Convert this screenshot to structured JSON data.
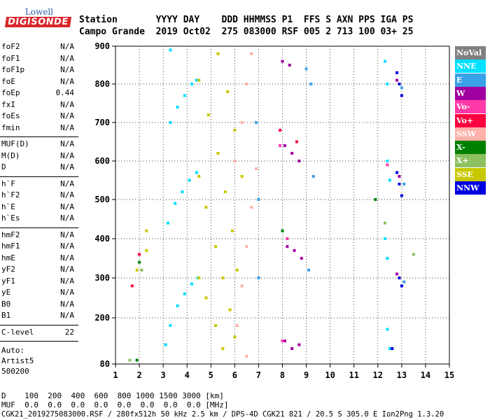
{
  "logo": {
    "line1": "Lowell",
    "line2": "DIGISONDE"
  },
  "header": {
    "row1": "Station       YYYY DAY    DDD HHMMSS P1  FFS S AXN PPS IGA PS",
    "row2": "Campo Grande  2019 Oct02  275 083000 RSF 005 2 713 100 03+ 25"
  },
  "params": [
    {
      "name": "foF2",
      "value": "N/A",
      "group": 0
    },
    {
      "name": "foF1",
      "value": "N/A",
      "group": 0
    },
    {
      "name": "foF1p",
      "value": "N/A",
      "group": 0
    },
    {
      "name": "foE",
      "value": "N/A",
      "group": 0
    },
    {
      "name": "foEp",
      "value": "0.44",
      "group": 0
    },
    {
      "name": "fxI",
      "value": "N/A",
      "group": 0
    },
    {
      "name": "foEs",
      "value": "N/A",
      "group": 0
    },
    {
      "name": "fmin",
      "value": "N/A",
      "group": 0
    },
    {
      "name": "MUF(D)",
      "value": "N/A",
      "group": 1
    },
    {
      "name": "M(D)",
      "value": "N/A",
      "group": 1
    },
    {
      "name": "D",
      "value": "N/A",
      "group": 1
    },
    {
      "name": "h`F",
      "value": "N/A",
      "group": 2
    },
    {
      "name": "h`F2",
      "value": "N/A",
      "group": 2
    },
    {
      "name": "h`E",
      "value": "N/A",
      "group": 2
    },
    {
      "name": "h`Es",
      "value": "N/A",
      "group": 2
    },
    {
      "name": "hmF2",
      "value": "N/A",
      "group": 3
    },
    {
      "name": "hmF1",
      "value": "N/A",
      "group": 3
    },
    {
      "name": "hmE",
      "value": "N/A",
      "group": 3
    },
    {
      "name": "yF2",
      "value": "N/A",
      "group": 3
    },
    {
      "name": "yF1",
      "value": "N/A",
      "group": 3
    },
    {
      "name": "yE",
      "value": "N/A",
      "group": 3
    },
    {
      "name": "B0",
      "value": "N/A",
      "group": 3
    },
    {
      "name": "B1",
      "value": "N/A",
      "group": 3
    },
    {
      "name": "C-level",
      "value": "22",
      "group": 4
    }
  ],
  "auto": [
    "Auto:",
    "Artist5",
    "500200"
  ],
  "legend": [
    {
      "label": "NoVal",
      "color": "#808080"
    },
    {
      "label": "NNE",
      "color": "#00e0ff"
    },
    {
      "label": "E",
      "color": "#3aa0e8"
    },
    {
      "label": "W",
      "color": "#a000a0"
    },
    {
      "label": "Vo-",
      "color": "#ff3aa8"
    },
    {
      "label": "Vo+",
      "color": "#ff0040"
    },
    {
      "label": "SSW",
      "color": "#ffb0a8"
    },
    {
      "label": "X-",
      "color": "#008000"
    },
    {
      "label": "X+",
      "color": "#8cc060"
    },
    {
      "label": "SSE",
      "color": "#c8c800"
    },
    {
      "label": "NNW",
      "color": "#0000e0"
    }
  ],
  "chart_data": {
    "type": "scatter",
    "xlim": [
      1,
      15
    ],
    "ylim": [
      80,
      900
    ],
    "x_ticks": [
      "1",
      "2",
      "3",
      "4",
      "5",
      "6",
      "7",
      "8",
      "9",
      "10",
      "11",
      "12",
      "13",
      "14",
      "15"
    ],
    "y_ticks": [
      "80",
      "200",
      "300",
      "400",
      "500",
      "600",
      "700",
      "800",
      "900"
    ],
    "grid": true,
    "series": [
      {
        "name": "NNE",
        "color": "#00e0ff",
        "points": [
          [
            3.1,
            130
          ],
          [
            3.3,
            180
          ],
          [
            3.6,
            230
          ],
          [
            3.9,
            260
          ],
          [
            4.2,
            285
          ],
          [
            4.45,
            300
          ],
          [
            3.2,
            440
          ],
          [
            3.5,
            490
          ],
          [
            3.8,
            520
          ],
          [
            4.1,
            550
          ],
          [
            4.4,
            570
          ],
          [
            3.3,
            700
          ],
          [
            3.6,
            740
          ],
          [
            3.9,
            770
          ],
          [
            4.2,
            800
          ],
          [
            4.4,
            810
          ],
          [
            3.3,
            890
          ],
          [
            12.3,
            860
          ],
          [
            12.4,
            800
          ],
          [
            12.4,
            600
          ],
          [
            12.5,
            550
          ],
          [
            12.3,
            400
          ],
          [
            12.4,
            350
          ],
          [
            12.4,
            170
          ],
          [
            12.5,
            120
          ]
        ]
      },
      {
        "name": "SSE",
        "color": "#c8c800",
        "points": [
          [
            4.5,
            300
          ],
          [
            4.8,
            250
          ],
          [
            5.2,
            180
          ],
          [
            5.5,
            120
          ],
          [
            4.5,
            560
          ],
          [
            4.8,
            480
          ],
          [
            5.2,
            380
          ],
          [
            5.5,
            300
          ],
          [
            5.8,
            220
          ],
          [
            6.0,
            150
          ],
          [
            4.5,
            810
          ],
          [
            4.9,
            720
          ],
          [
            5.3,
            620
          ],
          [
            5.6,
            520
          ],
          [
            5.9,
            420
          ],
          [
            6.1,
            320
          ],
          [
            5.3,
            880
          ],
          [
            5.7,
            780
          ],
          [
            6.0,
            680
          ],
          [
            6.3,
            560
          ],
          [
            1.9,
            320
          ],
          [
            2.3,
            370
          ],
          [
            2.3,
            420
          ]
        ]
      },
      {
        "name": "SSW",
        "color": "#ffb0a8",
        "points": [
          [
            6.1,
            180
          ],
          [
            6.3,
            280
          ],
          [
            6.5,
            380
          ],
          [
            6.7,
            480
          ],
          [
            6.9,
            580
          ],
          [
            6.5,
            100
          ],
          [
            6.3,
            700
          ],
          [
            6.5,
            800
          ],
          [
            6.7,
            880
          ],
          [
            6.0,
            600
          ]
        ]
      },
      {
        "name": "W",
        "color": "#a000a0",
        "points": [
          [
            8.0,
            860
          ],
          [
            8.3,
            850
          ],
          [
            8.1,
            640
          ],
          [
            8.4,
            620
          ],
          [
            8.7,
            600
          ],
          [
            8.2,
            380
          ],
          [
            8.5,
            370
          ],
          [
            8.8,
            350
          ],
          [
            8.1,
            140
          ],
          [
            8.4,
            120
          ],
          [
            8.7,
            130
          ],
          [
            12.8,
            810
          ],
          [
            12.9,
            560
          ],
          [
            12.8,
            310
          ]
        ]
      },
      {
        "name": "E",
        "color": "#3aa0e8",
        "points": [
          [
            6.9,
            700
          ],
          [
            7.0,
            500
          ],
          [
            7.0,
            300
          ],
          [
            9.0,
            840
          ],
          [
            9.2,
            800
          ],
          [
            9.3,
            560
          ],
          [
            9.1,
            320
          ],
          [
            13.0,
            790
          ],
          [
            13.1,
            540
          ],
          [
            13.1,
            290
          ]
        ]
      },
      {
        "name": "NNW",
        "color": "#0000e0",
        "points": [
          [
            12.8,
            830
          ],
          [
            12.9,
            800
          ],
          [
            13.0,
            770
          ],
          [
            12.8,
            570
          ],
          [
            12.9,
            540
          ],
          [
            13.0,
            510
          ],
          [
            12.9,
            300
          ],
          [
            13.0,
            280
          ],
          [
            12.6,
            120
          ]
        ]
      },
      {
        "name": "Vo+",
        "color": "#ff0040",
        "points": [
          [
            1.7,
            280
          ],
          [
            2.0,
            360
          ],
          [
            7.9,
            680
          ],
          [
            8.6,
            650
          ]
        ]
      },
      {
        "name": "X-",
        "color": "#008000",
        "points": [
          [
            1.9,
            90
          ],
          [
            2.0,
            340
          ],
          [
            8.0,
            420
          ],
          [
            11.9,
            500
          ]
        ]
      },
      {
        "name": "X+",
        "color": "#8cc060",
        "points": [
          [
            1.6,
            90
          ],
          [
            2.1,
            320
          ],
          [
            12.3,
            440
          ],
          [
            13.5,
            360
          ]
        ]
      },
      {
        "name": "Vo-",
        "color": "#ff3aa8",
        "points": [
          [
            7.9,
            640
          ],
          [
            8.2,
            400
          ],
          [
            8.0,
            140
          ],
          [
            12.4,
            590
          ]
        ]
      }
    ]
  },
  "bottom": {
    "d_row": "D    100  200  400  600  800 1000 1500 3000 [km]",
    "muf_row": "MUF  0.0  0.0  0.0  0.0  0.0  0.0  0.0  0.0 [MHz]",
    "footer": "CGK21_2019275083000.RSF / 280fx512h 50 kHz 2.5 km / DPS-4D CGK21 821 / 20.5 S 305.0 E Ion2Png 1.3.20"
  }
}
